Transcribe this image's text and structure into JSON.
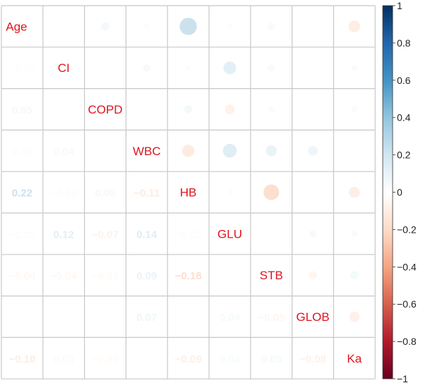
{
  "chart_data": {
    "type": "heatmap",
    "variables": [
      "Age",
      "CI",
      "COPD",
      "WBC",
      "HB",
      "GLU",
      "STB",
      "GLOB",
      "Ka"
    ],
    "matrix": [
      [
        1.0,
        -0.01,
        0.05,
        0.02,
        0.22,
        -0.02,
        -0.04,
        0.0,
        -0.1
      ],
      [
        -0.01,
        1.0,
        0.0,
        0.04,
        -0.02,
        0.12,
        -0.04,
        0.01,
        0.03
      ],
      [
        0.05,
        0.0,
        1.0,
        0.0,
        0.05,
        -0.07,
        -0.03,
        0.01,
        -0.03
      ],
      [
        0.02,
        0.04,
        0.0,
        1.0,
        -0.11,
        0.14,
        0.09,
        0.07,
        0.0
      ],
      [
        0.22,
        -0.02,
        0.05,
        -0.11,
        1.0,
        -0.02,
        -0.18,
        0.0,
        -0.09
      ],
      [
        -0.02,
        0.12,
        -0.07,
        0.14,
        -0.02,
        1.0,
        0.0,
        0.04,
        0.03
      ],
      [
        -0.04,
        -0.04,
        -0.03,
        0.09,
        -0.18,
        0.0,
        1.0,
        -0.05,
        0.05
      ],
      [
        0.0,
        0.01,
        0.01,
        0.07,
        0.0,
        0.04,
        -0.05,
        1.0,
        -0.08
      ],
      [
        -0.1,
        0.03,
        -0.03,
        0.0,
        -0.09,
        0.03,
        0.05,
        -0.08,
        1.0
      ]
    ],
    "lower_triangle": "numbers",
    "upper_triangle": "circles",
    "diagonal": "labels",
    "colorbar": {
      "range": [
        -1,
        1
      ],
      "ticks": [
        "1",
        "0.8",
        "0.6",
        "0.4",
        "0.2",
        "0",
        "−0.2",
        "−0.4",
        "−0.6",
        "−0.8",
        "−1"
      ],
      "colors": {
        "negative": "#67001f",
        "mid": "#ffffff",
        "positive": "#053061"
      },
      "placement": "right"
    },
    "label_color": "#e0141e",
    "grid_color": "#c8c8c8"
  }
}
